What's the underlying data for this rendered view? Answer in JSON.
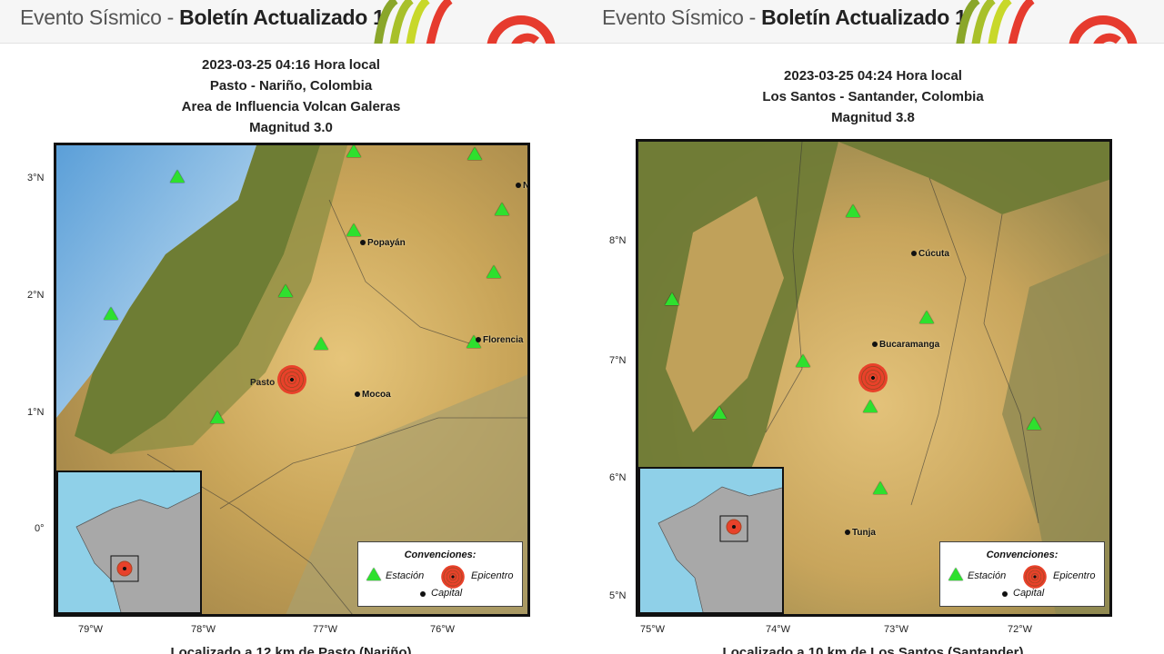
{
  "panels": [
    {
      "header": {
        "title_prefix": "Evento Sísmico",
        "separator": " - ",
        "title_bold": "Boletín Actualizado 1"
      },
      "datetime": "2023-03-25 04:16 Hora local",
      "location": "Pasto - Nariño, Colombia",
      "area": "Area de Influencia Volcan Galeras",
      "magnitude": "Magnitud 3.0",
      "lat_ticks": [
        "3°N",
        "2°N",
        "1°N",
        "0°"
      ],
      "lon_ticks": [
        "79°W",
        "78°W",
        "77°W",
        "76°W"
      ],
      "places": [
        "Popayán",
        "Florencia",
        "Mocoa",
        "N",
        "Pasto"
      ],
      "legend": {
        "title": "Convenciones:",
        "station": "Estación",
        "epicenter": "Epicentro",
        "capital": "Capital"
      },
      "footer": "Localizado a 12 km de Pasto (Nariño)"
    },
    {
      "header": {
        "title_prefix": "Evento Sísmico",
        "separator": " - ",
        "title_bold": "Boletín Actualizado 1"
      },
      "datetime": "2023-03-25 04:24 Hora local",
      "location": "Los Santos - Santander, Colombia",
      "magnitude": "Magnitud 3.8",
      "lat_ticks": [
        "8°N",
        "7°N",
        "6°N",
        "5°N"
      ],
      "lon_ticks": [
        "75°W",
        "74°W",
        "73°W",
        "72°W"
      ],
      "places": [
        "Cúcuta",
        "Bucaramanga",
        "Tunja"
      ],
      "legend": {
        "title": "Convenciones:",
        "station": "Estación",
        "epicenter": "Epicentro",
        "capital": "Capital"
      },
      "footer": "Localizado a 10 km de Los Santos (Santander)"
    }
  ],
  "colors": {
    "station": "#2ee02e",
    "epicenter": "#e8412a",
    "logo_red": "#e63b2e",
    "logo_green": "#9ab52a"
  },
  "icons": [
    "station-triangle-icon",
    "epicenter-target-icon",
    "capital-dot-icon"
  ]
}
